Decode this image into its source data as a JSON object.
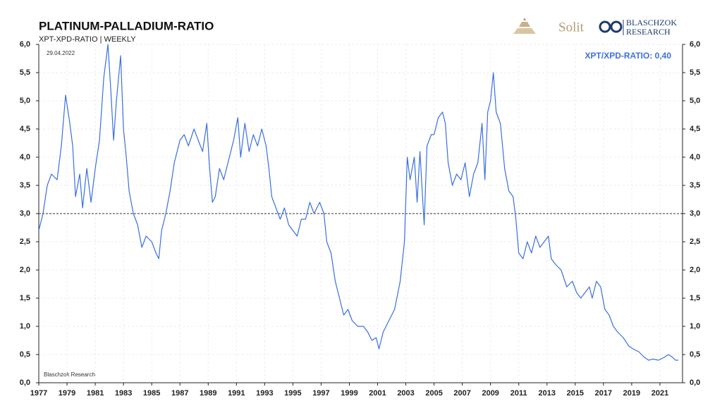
{
  "chart_data": {
    "type": "line",
    "title": "PLATINUM-PALLADIUM-RATIO",
    "subtitle": "XPT-XPD-RATIO | WEEKLY",
    "date_note": "29.04.2022",
    "source": "Blaschzok  Research",
    "value_note": "XPT/XPD-RATIO: 0,40",
    "logo_texts": [
      "Solit",
      "BLASCHZOK",
      "RESEARCH"
    ],
    "reference_line": 3.0,
    "xlim": [
      1977,
      2022.6
    ],
    "xticks": [
      1977,
      1979,
      1981,
      1983,
      1985,
      1987,
      1989,
      1991,
      1993,
      1995,
      1997,
      1999,
      2001,
      2003,
      2005,
      2007,
      2009,
      2011,
      2013,
      2015,
      2017,
      2019,
      2021
    ],
    "ylim": [
      0,
      6
    ],
    "yticks": [
      {
        "value": 0,
        "label": "0,0"
      },
      {
        "value": 0.5,
        "label": "0,5"
      },
      {
        "value": 1,
        "label": "1,0"
      },
      {
        "value": 1.5,
        "label": "1,5"
      },
      {
        "value": 2,
        "label": "2,0"
      },
      {
        "value": 2.5,
        "label": "2,5"
      },
      {
        "value": 3,
        "label": "3,0"
      },
      {
        "value": 3.5,
        "label": "3,5"
      },
      {
        "value": 4,
        "label": "4,0"
      },
      {
        "value": 4.5,
        "label": "4,5"
      },
      {
        "value": 5,
        "label": "5,0"
      },
      {
        "value": 5.5,
        "label": "5,5"
      },
      {
        "value": 6,
        "label": "6,0"
      }
    ],
    "grid": true,
    "color": "#3a6fe0",
    "x": [
      1977.0,
      1977.3,
      1977.6,
      1977.9,
      1978.3,
      1978.6,
      1978.9,
      1979.2,
      1979.4,
      1979.6,
      1979.9,
      1980.1,
      1980.4,
      1980.7,
      1981.0,
      1981.3,
      1981.6,
      1981.9,
      1982.1,
      1982.3,
      1982.5,
      1982.8,
      1983.0,
      1983.2,
      1983.4,
      1983.7,
      1984.0,
      1984.3,
      1984.6,
      1985.0,
      1985.3,
      1985.5,
      1985.7,
      1986.0,
      1986.3,
      1986.6,
      1987.0,
      1987.3,
      1987.6,
      1988.0,
      1988.3,
      1988.6,
      1988.9,
      1989.1,
      1989.3,
      1989.5,
      1989.8,
      1990.1,
      1990.4,
      1990.8,
      1991.1,
      1991.3,
      1991.6,
      1991.9,
      1992.2,
      1992.5,
      1992.8,
      1993.1,
      1993.3,
      1993.5,
      1993.8,
      1994.1,
      1994.4,
      1994.7,
      1995.0,
      1995.3,
      1995.6,
      1995.9,
      1996.2,
      1996.5,
      1996.9,
      1997.2,
      1997.4,
      1997.7,
      1998.0,
      1998.3,
      1998.6,
      1998.9,
      1999.2,
      1999.6,
      2000.0,
      2000.3,
      2000.6,
      2000.9,
      2001.1,
      2001.4,
      2001.8,
      2002.2,
      2002.6,
      2002.9,
      2003.1,
      2003.3,
      2003.6,
      2003.8,
      2004.0,
      2004.3,
      2004.5,
      2004.8,
      2005.0,
      2005.3,
      2005.6,
      2005.8,
      2006.0,
      2006.3,
      2006.6,
      2006.9,
      2007.2,
      2007.5,
      2007.8,
      2008.1,
      2008.4,
      2008.6,
      2008.8,
      2009.0,
      2009.2,
      2009.4,
      2009.7,
      2010.0,
      2010.3,
      2010.6,
      2010.8,
      2011.0,
      2011.3,
      2011.6,
      2011.9,
      2012.2,
      2012.5,
      2012.8,
      2013.1,
      2013.3,
      2013.6,
      2014.0,
      2014.4,
      2014.8,
      2015.1,
      2015.4,
      2015.7,
      2016.0,
      2016.2,
      2016.5,
      2016.8,
      2017.1,
      2017.4,
      2017.7,
      2018.0,
      2018.4,
      2018.8,
      2019.1,
      2019.5,
      2019.9,
      2020.2,
      2020.5,
      2020.9,
      2021.3,
      2021.6,
      2021.9,
      2022.1,
      2022.3
    ],
    "values": [
      2.7,
      3.0,
      3.5,
      3.7,
      3.6,
      4.2,
      5.1,
      4.6,
      4.2,
      3.3,
      3.7,
      3.1,
      3.8,
      3.2,
      3.8,
      4.3,
      5.4,
      6.0,
      5.2,
      4.3,
      5.0,
      5.8,
      4.5,
      4.0,
      3.4,
      3.0,
      2.8,
      2.4,
      2.6,
      2.5,
      2.3,
      2.2,
      2.7,
      3.0,
      3.4,
      3.9,
      4.3,
      4.4,
      4.2,
      4.5,
      4.3,
      4.1,
      4.6,
      3.8,
      3.2,
      3.3,
      3.8,
      3.6,
      3.9,
      4.3,
      4.7,
      4.0,
      4.6,
      4.1,
      4.4,
      4.2,
      4.5,
      4.2,
      3.8,
      3.3,
      3.1,
      2.9,
      3.1,
      2.8,
      2.7,
      2.6,
      2.9,
      2.9,
      3.2,
      3.0,
      3.2,
      3.0,
      2.5,
      2.3,
      1.8,
      1.5,
      1.2,
      1.3,
      1.1,
      1.0,
      1.0,
      0.9,
      0.75,
      0.8,
      0.6,
      0.9,
      1.1,
      1.3,
      1.8,
      2.5,
      4.0,
      3.6,
      4.0,
      3.2,
      4.1,
      2.8,
      4.2,
      4.4,
      4.4,
      4.7,
      4.8,
      4.6,
      3.9,
      3.5,
      3.7,
      3.6,
      3.9,
      3.3,
      3.7,
      3.9,
      4.6,
      3.6,
      4.8,
      5.0,
      5.5,
      4.8,
      4.6,
      3.8,
      3.4,
      3.3,
      2.9,
      2.3,
      2.2,
      2.5,
      2.3,
      2.6,
      2.4,
      2.5,
      2.6,
      2.2,
      2.1,
      2.0,
      1.7,
      1.8,
      1.6,
      1.5,
      1.6,
      1.7,
      1.5,
      1.8,
      1.7,
      1.3,
      1.2,
      1.0,
      0.9,
      0.8,
      0.65,
      0.6,
      0.55,
      0.45,
      0.4,
      0.42,
      0.4,
      0.45,
      0.5,
      0.45,
      0.4,
      0.4
    ]
  }
}
